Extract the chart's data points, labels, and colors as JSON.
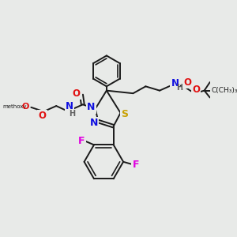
{
  "bg_color": "#e8eae8",
  "bond_color": "#1a1a1a",
  "bond_width": 1.4,
  "atom_colors": {
    "N": "#1010e0",
    "O": "#e01010",
    "S": "#c8a000",
    "F": "#e000e0",
    "C": "#1a1a1a",
    "H": "#606060"
  },
  "figsize": [
    3.0,
    3.0
  ],
  "dpi": 100
}
